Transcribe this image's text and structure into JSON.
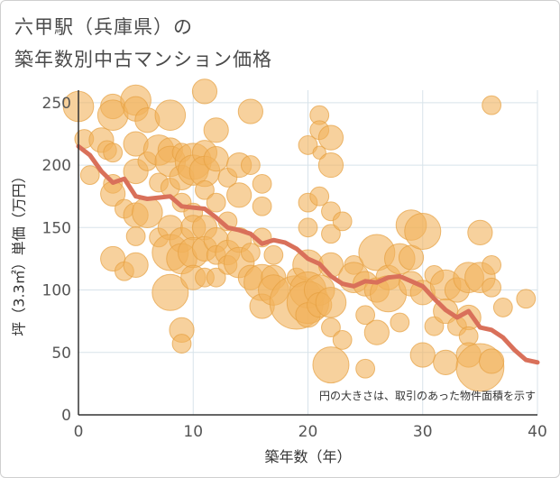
{
  "title": {
    "line1": "六甲駅（兵庫県）の",
    "line2": "築年数別中古マンション価格"
  },
  "colors": {
    "bubble_fill": "#f2b35c",
    "bubble_stroke": "#e6a040",
    "line": "#d9705a",
    "grid": "#d8e3ea",
    "axis": "#333333"
  },
  "chart_data": {
    "type": "scatter",
    "xlabel": "築年数（年）",
    "ylabel": "坪（3.3㎡）単価（万円）",
    "xlim": [
      0,
      40
    ],
    "ylim": [
      0,
      260
    ],
    "xticks": [
      "0",
      "10",
      "20",
      "30",
      "40"
    ],
    "yticks": [
      "0",
      "50",
      "100",
      "150",
      "200",
      "250"
    ],
    "note": "円の大きさは、取引のあった物件面積を示す",
    "grid": true,
    "series": [
      {
        "type": "bubble",
        "points": [
          [
            0,
            247,
            4
          ],
          [
            0.5,
            221,
            2
          ],
          [
            1,
            192,
            2
          ],
          [
            2,
            220,
            3
          ],
          [
            2.5,
            212,
            2
          ],
          [
            3,
            247,
            3
          ],
          [
            3,
            240,
            4
          ],
          [
            3,
            210,
            2
          ],
          [
            3,
            185,
            2
          ],
          [
            3,
            177,
            3
          ],
          [
            3,
            125,
            3
          ],
          [
            4,
            165,
            2
          ],
          [
            4,
            115,
            2
          ],
          [
            5,
            252,
            4
          ],
          [
            5,
            245,
            3
          ],
          [
            5,
            217,
            3
          ],
          [
            5,
            195,
            3
          ],
          [
            5,
            160,
            3
          ],
          [
            5,
            143,
            2
          ],
          [
            5,
            120,
            3
          ],
          [
            6,
            236,
            3
          ],
          [
            6,
            203,
            2
          ],
          [
            6,
            162,
            4
          ],
          [
            7,
            212,
            4
          ],
          [
            7,
            186,
            2
          ],
          [
            7,
            142,
            2
          ],
          [
            8,
            240,
            4
          ],
          [
            8,
            212,
            3
          ],
          [
            8,
            203,
            4
          ],
          [
            8,
            182,
            2
          ],
          [
            8,
            150,
            3
          ],
          [
            8,
            130,
            5
          ],
          [
            8,
            98,
            5
          ],
          [
            9,
            210,
            2
          ],
          [
            9,
            190,
            3
          ],
          [
            9,
            170,
            2
          ],
          [
            9,
            140,
            3
          ],
          [
            9,
            125,
            4
          ],
          [
            9,
            68,
            3
          ],
          [
            9,
            57,
            2
          ],
          [
            10,
            203,
            5
          ],
          [
            10,
            196,
            4
          ],
          [
            10,
            162,
            2
          ],
          [
            10,
            150,
            3
          ],
          [
            10,
            130,
            4
          ],
          [
            10,
            110,
            3
          ],
          [
            11,
            259,
            3
          ],
          [
            11,
            210,
            3
          ],
          [
            11,
            195,
            4
          ],
          [
            11,
            180,
            2
          ],
          [
            11,
            150,
            3
          ],
          [
            11,
            133,
            3
          ],
          [
            11,
            110,
            2
          ],
          [
            12,
            228,
            3
          ],
          [
            12,
            205,
            3
          ],
          [
            12,
            170,
            2
          ],
          [
            12,
            140,
            3
          ],
          [
            12,
            128,
            2
          ],
          [
            12,
            110,
            2
          ],
          [
            13,
            190,
            2
          ],
          [
            13,
            155,
            2
          ],
          [
            13,
            130,
            3
          ],
          [
            13,
            120,
            2
          ],
          [
            14,
            200,
            3
          ],
          [
            14,
            176,
            3
          ],
          [
            14,
            140,
            3
          ],
          [
            14,
            122,
            4
          ],
          [
            15,
            243,
            3
          ],
          [
            15,
            200,
            2
          ],
          [
            15,
            130,
            2
          ],
          [
            15,
            110,
            3
          ],
          [
            16,
            185,
            2
          ],
          [
            16,
            167,
            2
          ],
          [
            16,
            142,
            2
          ],
          [
            16,
            106,
            5
          ],
          [
            16,
            87,
            3
          ],
          [
            17,
            128,
            2
          ],
          [
            17,
            110,
            3
          ],
          [
            17,
            100,
            4
          ],
          [
            19,
            90,
            8
          ],
          [
            19,
            110,
            2
          ],
          [
            20,
            216,
            2
          ],
          [
            20,
            170,
            2
          ],
          [
            20,
            150,
            2
          ],
          [
            20,
            120,
            4
          ],
          [
            20,
            100,
            5
          ],
          [
            20,
            90,
            6
          ],
          [
            20,
            80,
            3
          ],
          [
            21,
            240,
            2
          ],
          [
            21,
            228,
            2
          ],
          [
            21,
            210,
            1
          ],
          [
            21,
            175,
            2
          ],
          [
            21,
            100,
            4
          ],
          [
            21,
            88,
            3
          ],
          [
            22,
            222,
            3
          ],
          [
            22,
            200,
            3
          ],
          [
            22,
            163,
            2
          ],
          [
            22,
            145,
            2
          ],
          [
            22,
            120,
            3
          ],
          [
            22,
            90,
            4
          ],
          [
            22,
            70,
            2
          ],
          [
            22,
            40,
            5
          ],
          [
            23,
            155,
            2
          ],
          [
            23,
            60,
            2
          ],
          [
            24,
            120,
            2
          ],
          [
            24,
            110,
            4
          ],
          [
            25,
            80,
            2
          ],
          [
            25,
            105,
            3
          ],
          [
            25,
            37,
            2
          ],
          [
            26,
            130,
            5
          ],
          [
            26,
            100,
            3
          ],
          [
            26,
            66,
            3
          ],
          [
            27,
            110,
            3
          ],
          [
            27,
            97,
            5
          ],
          [
            28,
            125,
            4
          ],
          [
            28,
            74,
            2
          ],
          [
            29,
            152,
            4
          ],
          [
            29,
            126,
            3
          ],
          [
            29,
            105,
            3
          ],
          [
            30,
            147,
            5
          ],
          [
            30,
            98,
            3
          ],
          [
            30,
            48,
            3
          ],
          [
            31,
            112,
            2
          ],
          [
            31,
            71,
            2
          ],
          [
            32,
            104,
            4
          ],
          [
            32,
            83,
            3
          ],
          [
            32,
            42,
            3
          ],
          [
            33,
            100,
            3
          ],
          [
            33,
            71,
            2
          ],
          [
            34,
            110,
            4
          ],
          [
            34,
            78,
            3
          ],
          [
            34,
            63,
            2
          ],
          [
            34,
            48,
            3
          ],
          [
            35,
            146,
            3
          ],
          [
            35,
            110,
            4
          ],
          [
            35,
            38,
            7
          ],
          [
            36,
            248,
            2
          ],
          [
            36,
            120,
            2
          ],
          [
            36,
            102,
            2
          ],
          [
            36,
            43,
            3
          ],
          [
            37,
            86,
            2
          ],
          [
            39,
            93,
            2
          ]
        ]
      },
      {
        "type": "line",
        "x": [
          0,
          1,
          2,
          3,
          4,
          5,
          6,
          7,
          8,
          9,
          10,
          11,
          12,
          13,
          14,
          15,
          16,
          17,
          18,
          19,
          20,
          21,
          22,
          23,
          24,
          25,
          26,
          27,
          28,
          29,
          30,
          31,
          32,
          33,
          34,
          35,
          36,
          37,
          38,
          39,
          40
        ],
        "y": [
          215,
          208,
          195,
          186,
          189,
          175,
          173,
          174,
          175,
          167,
          166,
          165,
          158,
          150,
          148,
          145,
          137,
          140,
          138,
          133,
          125,
          121,
          111,
          105,
          103,
          107,
          106,
          110,
          111,
          107,
          103,
          93,
          84,
          78,
          83,
          70,
          68,
          62,
          52,
          44,
          42
        ]
      }
    ]
  }
}
